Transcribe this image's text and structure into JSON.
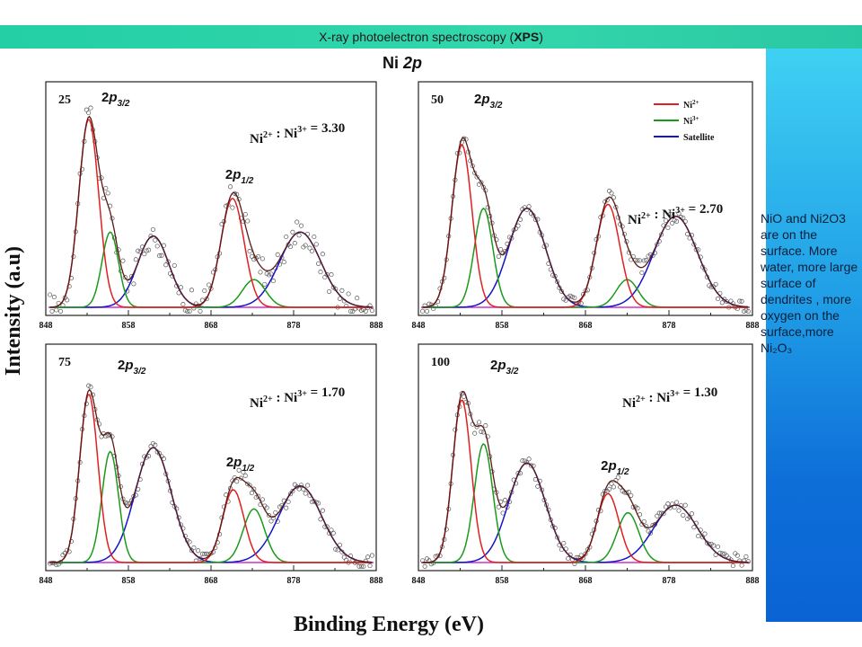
{
  "banner": {
    "title_prefix": "X-ray photoelectron spectroscopy (",
    "title_bold": "XPS",
    "title_suffix": ")"
  },
  "side_note": "NiO and Ni2O3 are on the surface. More water, more large surface of dendrites , more oxygen on the surface,more Ni₂O₃",
  "colors": {
    "banner": "#2fd3aa",
    "ni2": "#e02020",
    "ni3": "#1a9a1a",
    "satellite": "#1414c8",
    "envelope": "#5a1a1a",
    "baseline": "#cc33cc",
    "data_points": "#555555"
  },
  "chart_data": {
    "type": "line",
    "title": "Ni 2p",
    "ylabel": "Intensity (a.u)",
    "xlabel": "Binding Energy (eV)",
    "xlim": [
      848,
      888
    ],
    "xticks": [
      "848",
      "858",
      "868",
      "878",
      "888"
    ],
    "legend": {
      "placement": "top-right (panel 50)",
      "entries": [
        {
          "label": "Ni2+",
          "series": "ni2"
        },
        {
          "label": "Ni3+",
          "series": "ni3"
        },
        {
          "label": "Satellite",
          "series": "sat"
        }
      ]
    },
    "panels": [
      {
        "label": "25",
        "ratio_text": "Ni2+ : Ni3+ = 3.30",
        "peak_labels": [
          "2p3/2",
          "2p1/2"
        ],
        "ylim": [
          0,
          1.08
        ],
        "series": {
          "ni2": [
            {
              "center": 853.2,
              "height": 0.95,
              "width": 1.2
            },
            {
              "center": 870.6,
              "height": 0.55,
              "width": 1.4
            }
          ],
          "ni3": [
            {
              "center": 855.8,
              "height": 0.38,
              "width": 1.0
            },
            {
              "center": 873.2,
              "height": 0.14,
              "width": 1.4
            }
          ],
          "sat": [
            {
              "center": 861.0,
              "height": 0.36,
              "width": 1.9
            },
            {
              "center": 878.8,
              "height": 0.38,
              "width": 2.5
            }
          ]
        }
      },
      {
        "label": "50",
        "ratio_text": "Ni2+ : Ni3+ = 2.70",
        "peak_labels": [
          "2p3/2"
        ],
        "ylim": [
          0,
          1.08
        ],
        "series": {
          "ni2": [
            {
              "center": 853.2,
              "height": 0.82,
              "width": 1.2
            },
            {
              "center": 870.7,
              "height": 0.52,
              "width": 1.4
            }
          ],
          "ni3": [
            {
              "center": 855.8,
              "height": 0.5,
              "width": 1.1
            },
            {
              "center": 873.0,
              "height": 0.14,
              "width": 1.3
            }
          ],
          "sat": [
            {
              "center": 861.0,
              "height": 0.5,
              "width": 2.2
            },
            {
              "center": 878.8,
              "height": 0.46,
              "width": 2.6
            }
          ]
        }
      },
      {
        "label": "75",
        "ratio_text": "Ni2+ : Ni3+ = 1.70",
        "peak_labels": [
          "2p3/2",
          "2p1/2"
        ],
        "ylim": [
          0,
          1.08
        ],
        "series": {
          "ni2": [
            {
              "center": 853.2,
              "height": 0.88,
              "width": 1.1
            },
            {
              "center": 870.7,
              "height": 0.38,
              "width": 1.3
            }
          ],
          "ni3": [
            {
              "center": 855.8,
              "height": 0.58,
              "width": 1.0
            },
            {
              "center": 873.2,
              "height": 0.28,
              "width": 1.3
            }
          ],
          "sat": [
            {
              "center": 861.0,
              "height": 0.6,
              "width": 2.2
            },
            {
              "center": 878.8,
              "height": 0.4,
              "width": 2.6
            }
          ]
        }
      },
      {
        "label": "100",
        "ratio_text": "Ni2+ : Ni3+ = 1.30",
        "peak_labels": [
          "2p3/2",
          "2p1/2"
        ],
        "ylim": [
          0,
          1.08
        ],
        "series": {
          "ni2": [
            {
              "center": 853.2,
              "height": 0.85,
              "width": 1.1
            },
            {
              "center": 870.7,
              "height": 0.36,
              "width": 1.3
            }
          ],
          "ni3": [
            {
              "center": 855.8,
              "height": 0.62,
              "width": 1.1
            },
            {
              "center": 873.1,
              "height": 0.26,
              "width": 1.3
            }
          ],
          "sat": [
            {
              "center": 861.0,
              "height": 0.52,
              "width": 2.2
            },
            {
              "center": 878.8,
              "height": 0.3,
              "width": 2.6
            }
          ]
        }
      }
    ]
  }
}
